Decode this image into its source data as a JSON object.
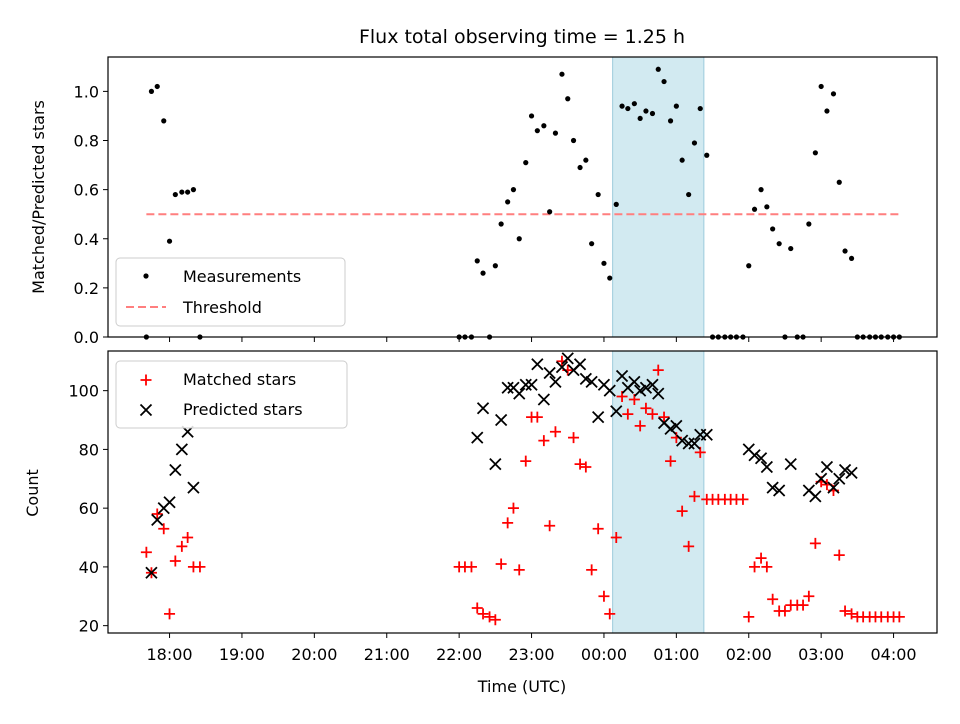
{
  "chart_data": {
    "title": "Flux total observing time = 1.25 h",
    "xlabel": "Time (UTC)",
    "x_tick_labels": [
      "18:00",
      "19:00",
      "20:00",
      "21:00",
      "22:00",
      "23:00",
      "00:00",
      "01:00",
      "02:00",
      "03:00",
      "04:00"
    ],
    "x_tick_hours": [
      18,
      19,
      20,
      21,
      22,
      23,
      24,
      25,
      26,
      27,
      28
    ],
    "xlim": [
      17.15,
      28.6
    ],
    "highlight_span": [
      24.12,
      25.38
    ],
    "colors": {
      "measurements": "#000000",
      "threshold": "#ff7f7f",
      "matched": "#ff0000",
      "predicted": "#000000",
      "span": "#add8e6"
    },
    "top": {
      "type": "scatter",
      "ylabel": "Matched/Predicted stars",
      "ylim": [
        0,
        1.14
      ],
      "yticks": [
        0.0,
        0.2,
        0.4,
        0.6,
        0.8,
        1.0
      ],
      "ytick_labels": [
        "0.0",
        "0.2",
        "0.4",
        "0.6",
        "0.8",
        "1.0"
      ],
      "threshold": 0.5,
      "threshold_range": [
        17.68,
        28.1
      ],
      "legend": {
        "measurements": "Measurements",
        "threshold": "Threshold"
      },
      "measurements": [
        [
          17.68,
          0.0
        ],
        [
          17.75,
          1.0
        ],
        [
          17.83,
          1.02
        ],
        [
          17.92,
          0.88
        ],
        [
          18.0,
          0.39
        ],
        [
          18.08,
          0.58
        ],
        [
          18.17,
          0.59
        ],
        [
          18.25,
          0.59
        ],
        [
          18.33,
          0.6
        ],
        [
          18.42,
          0.0
        ],
        [
          22.0,
          0.0
        ],
        [
          22.08,
          0.0
        ],
        [
          22.17,
          0.0
        ],
        [
          22.25,
          0.31
        ],
        [
          22.33,
          0.26
        ],
        [
          22.42,
          0.0
        ],
        [
          22.5,
          0.29
        ],
        [
          22.58,
          0.46
        ],
        [
          22.67,
          0.55
        ],
        [
          22.75,
          0.6
        ],
        [
          22.83,
          0.4
        ],
        [
          22.92,
          0.71
        ],
        [
          23.0,
          0.9
        ],
        [
          23.08,
          0.84
        ],
        [
          23.17,
          0.86
        ],
        [
          23.25,
          0.51
        ],
        [
          23.33,
          0.83
        ],
        [
          23.42,
          1.07
        ],
        [
          23.5,
          0.97
        ],
        [
          23.58,
          0.8
        ],
        [
          23.67,
          0.69
        ],
        [
          23.75,
          0.72
        ],
        [
          23.83,
          0.38
        ],
        [
          23.92,
          0.58
        ],
        [
          24.0,
          0.3
        ],
        [
          24.08,
          0.24
        ],
        [
          24.17,
          0.54
        ],
        [
          24.25,
          0.94
        ],
        [
          24.33,
          0.93
        ],
        [
          24.42,
          0.95
        ],
        [
          24.5,
          0.89
        ],
        [
          24.58,
          0.92
        ],
        [
          24.67,
          0.91
        ],
        [
          24.75,
          1.09
        ],
        [
          24.83,
          1.04
        ],
        [
          24.92,
          0.88
        ],
        [
          25.0,
          0.94
        ],
        [
          25.08,
          0.72
        ],
        [
          25.17,
          0.58
        ],
        [
          25.25,
          0.79
        ],
        [
          25.33,
          0.93
        ],
        [
          25.42,
          0.74
        ],
        [
          25.5,
          0.0
        ],
        [
          25.58,
          0.0
        ],
        [
          25.67,
          0.0
        ],
        [
          25.75,
          0.0
        ],
        [
          25.83,
          0.0
        ],
        [
          25.92,
          0.0
        ],
        [
          26.0,
          0.29
        ],
        [
          26.08,
          0.52
        ],
        [
          26.17,
          0.6
        ],
        [
          26.25,
          0.53
        ],
        [
          26.33,
          0.44
        ],
        [
          26.42,
          0.38
        ],
        [
          26.5,
          0.0
        ],
        [
          26.58,
          0.36
        ],
        [
          26.67,
          0.0
        ],
        [
          26.75,
          0.0
        ],
        [
          26.83,
          0.46
        ],
        [
          26.92,
          0.75
        ],
        [
          27.0,
          1.02
        ],
        [
          27.08,
          0.92
        ],
        [
          27.17,
          0.99
        ],
        [
          27.25,
          0.63
        ],
        [
          27.33,
          0.35
        ],
        [
          27.42,
          0.32
        ],
        [
          27.5,
          0.0
        ],
        [
          27.58,
          0.0
        ],
        [
          27.67,
          0.0
        ],
        [
          27.75,
          0.0
        ],
        [
          27.83,
          0.0
        ],
        [
          27.92,
          0.0
        ],
        [
          28.0,
          0.0
        ],
        [
          28.08,
          0.0
        ]
      ]
    },
    "bottom": {
      "type": "scatter",
      "ylabel": "Count",
      "ylim": [
        17.5,
        113.5
      ],
      "yticks": [
        20,
        40,
        60,
        80,
        100
      ],
      "ytick_labels": [
        "20",
        "40",
        "60",
        "80",
        "100"
      ],
      "legend": {
        "matched": "Matched stars",
        "predicted": "Predicted stars"
      },
      "matched": [
        [
          17.68,
          45
        ],
        [
          17.75,
          38
        ],
        [
          17.83,
          58
        ],
        [
          17.92,
          53
        ],
        [
          18.0,
          24
        ],
        [
          18.08,
          42
        ],
        [
          18.17,
          47
        ],
        [
          18.25,
          50
        ],
        [
          18.33,
          40
        ],
        [
          18.42,
          40
        ],
        [
          22.0,
          40
        ],
        [
          22.08,
          40
        ],
        [
          22.17,
          40
        ],
        [
          22.25,
          26
        ],
        [
          22.33,
          24
        ],
        [
          22.42,
          23
        ],
        [
          22.5,
          22
        ],
        [
          22.58,
          41
        ],
        [
          22.67,
          55
        ],
        [
          22.75,
          60
        ],
        [
          22.83,
          39
        ],
        [
          22.92,
          76
        ],
        [
          23.0,
          91
        ],
        [
          23.08,
          91
        ],
        [
          23.17,
          83
        ],
        [
          23.25,
          54
        ],
        [
          23.33,
          86
        ],
        [
          23.42,
          110
        ],
        [
          23.5,
          107
        ],
        [
          23.58,
          84
        ],
        [
          23.67,
          75
        ],
        [
          23.75,
          74
        ],
        [
          23.83,
          39
        ],
        [
          23.92,
          53
        ],
        [
          24.0,
          30
        ],
        [
          24.08,
          24
        ],
        [
          24.17,
          50
        ],
        [
          24.25,
          98
        ],
        [
          24.33,
          92
        ],
        [
          24.42,
          97
        ],
        [
          24.5,
          88
        ],
        [
          24.58,
          94
        ],
        [
          24.67,
          92
        ],
        [
          24.75,
          107
        ],
        [
          24.83,
          91
        ],
        [
          24.92,
          76
        ],
        [
          25.0,
          84
        ],
        [
          25.08,
          59
        ],
        [
          25.17,
          47
        ],
        [
          25.25,
          64
        ],
        [
          25.33,
          79
        ],
        [
          25.42,
          63
        ],
        [
          25.5,
          63
        ],
        [
          25.58,
          63
        ],
        [
          25.67,
          63
        ],
        [
          25.75,
          63
        ],
        [
          25.83,
          63
        ],
        [
          25.92,
          63
        ],
        [
          26.0,
          23
        ],
        [
          26.08,
          40
        ],
        [
          26.17,
          43
        ],
        [
          26.25,
          40
        ],
        [
          26.33,
          29
        ],
        [
          26.42,
          25
        ],
        [
          26.5,
          25
        ],
        [
          26.58,
          27
        ],
        [
          26.67,
          27
        ],
        [
          26.75,
          27
        ],
        [
          26.83,
          30
        ],
        [
          26.92,
          48
        ],
        [
          27.0,
          69
        ],
        [
          27.08,
          68
        ],
        [
          27.17,
          66
        ],
        [
          27.25,
          44
        ],
        [
          27.33,
          25
        ],
        [
          27.42,
          24
        ],
        [
          27.5,
          23
        ],
        [
          27.58,
          23
        ],
        [
          27.67,
          23
        ],
        [
          27.75,
          23
        ],
        [
          27.83,
          23
        ],
        [
          27.92,
          23
        ],
        [
          28.0,
          23
        ],
        [
          28.08,
          23
        ]
      ],
      "predicted": [
        [
          17.75,
          38
        ],
        [
          17.83,
          56
        ],
        [
          17.92,
          60
        ],
        [
          18.0,
          62
        ],
        [
          18.08,
          73
        ],
        [
          18.17,
          80
        ],
        [
          18.25,
          86
        ],
        [
          18.33,
          67
        ],
        [
          22.25,
          84
        ],
        [
          22.33,
          94
        ],
        [
          22.5,
          75
        ],
        [
          22.58,
          90
        ],
        [
          22.67,
          101
        ],
        [
          22.75,
          101
        ],
        [
          22.83,
          99
        ],
        [
          22.92,
          102
        ],
        [
          23.0,
          102
        ],
        [
          23.08,
          109
        ],
        [
          23.17,
          97
        ],
        [
          23.25,
          106
        ],
        [
          23.33,
          103
        ],
        [
          23.42,
          108
        ],
        [
          23.5,
          111
        ],
        [
          23.58,
          107
        ],
        [
          23.67,
          109
        ],
        [
          23.75,
          104
        ],
        [
          23.83,
          103
        ],
        [
          23.92,
          91
        ],
        [
          24.0,
          102
        ],
        [
          24.08,
          100
        ],
        [
          24.17,
          93
        ],
        [
          24.25,
          105
        ],
        [
          24.33,
          101
        ],
        [
          24.42,
          103
        ],
        [
          24.5,
          100
        ],
        [
          24.58,
          101
        ],
        [
          24.67,
          102
        ],
        [
          24.75,
          99
        ],
        [
          24.83,
          89
        ],
        [
          24.92,
          87
        ],
        [
          25.0,
          88
        ],
        [
          25.08,
          83
        ],
        [
          25.17,
          82
        ],
        [
          25.25,
          82
        ],
        [
          25.33,
          85
        ],
        [
          25.42,
          85
        ],
        [
          26.0,
          80
        ],
        [
          26.08,
          78
        ],
        [
          26.17,
          77
        ],
        [
          26.25,
          74
        ],
        [
          26.33,
          67
        ],
        [
          26.42,
          66
        ],
        [
          26.58,
          75
        ],
        [
          26.83,
          66
        ],
        [
          26.92,
          64
        ],
        [
          27.0,
          70
        ],
        [
          27.08,
          74
        ],
        [
          27.17,
          67
        ],
        [
          27.25,
          70
        ],
        [
          27.33,
          73
        ],
        [
          27.42,
          72
        ]
      ]
    }
  }
}
